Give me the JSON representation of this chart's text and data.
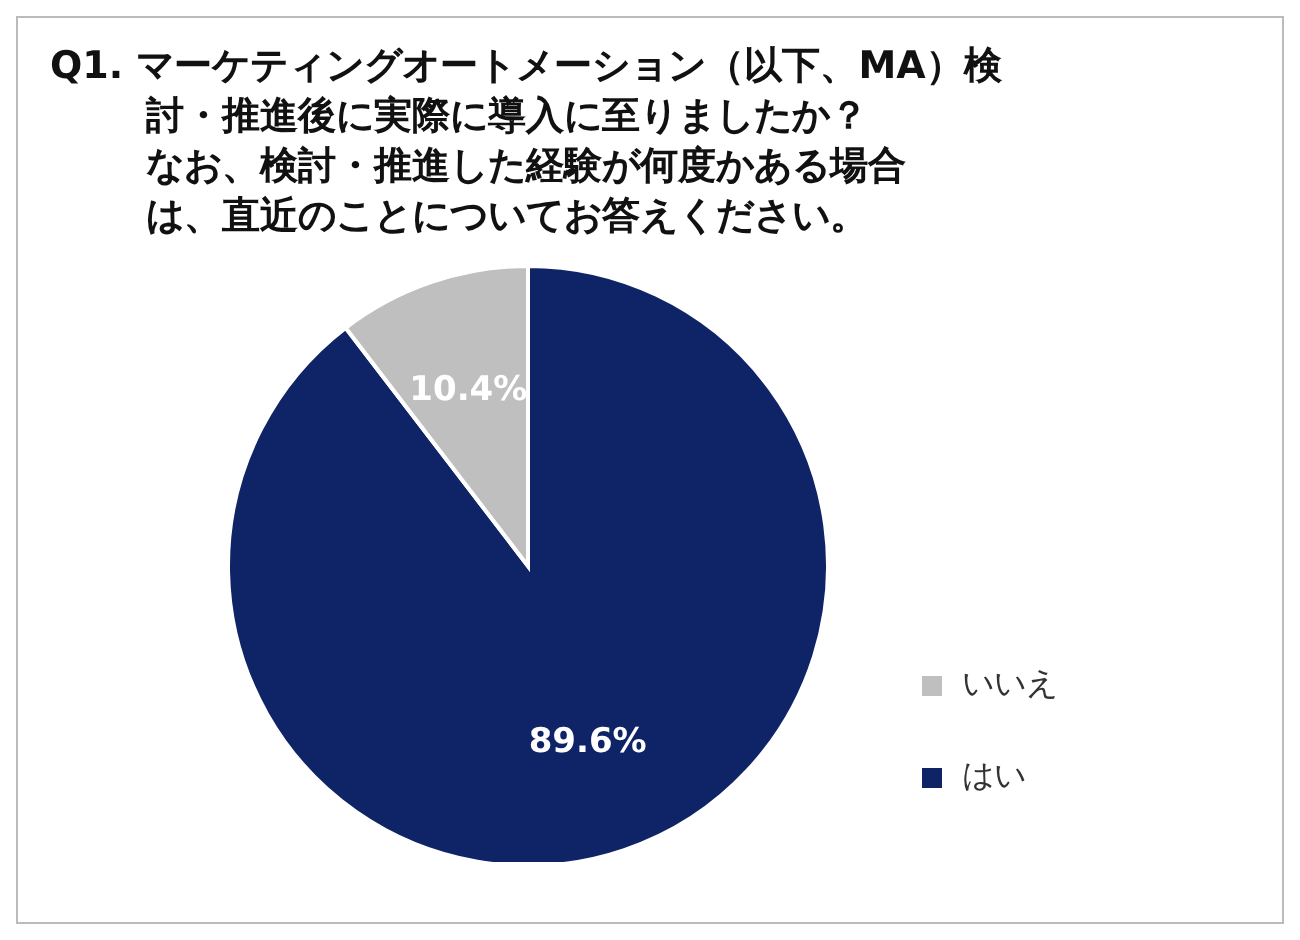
{
  "chart_data": {
    "type": "pie",
    "title": "Q1. マーケティングオートメーション（以下、MA）検討・推進後に実際に導入に至りましたか？",
    "subtitle": "なお、検討・推進した経験が何度かある場合は、直近のことについてお答えください。",
    "categories": [
      "はい",
      "いいえ"
    ],
    "values": [
      89.6,
      10.4
    ],
    "value_labels": [
      "89.6%",
      "10.4%"
    ],
    "colors": [
      "#0f2466",
      "#bfbfbf"
    ],
    "legend": "right"
  }
}
